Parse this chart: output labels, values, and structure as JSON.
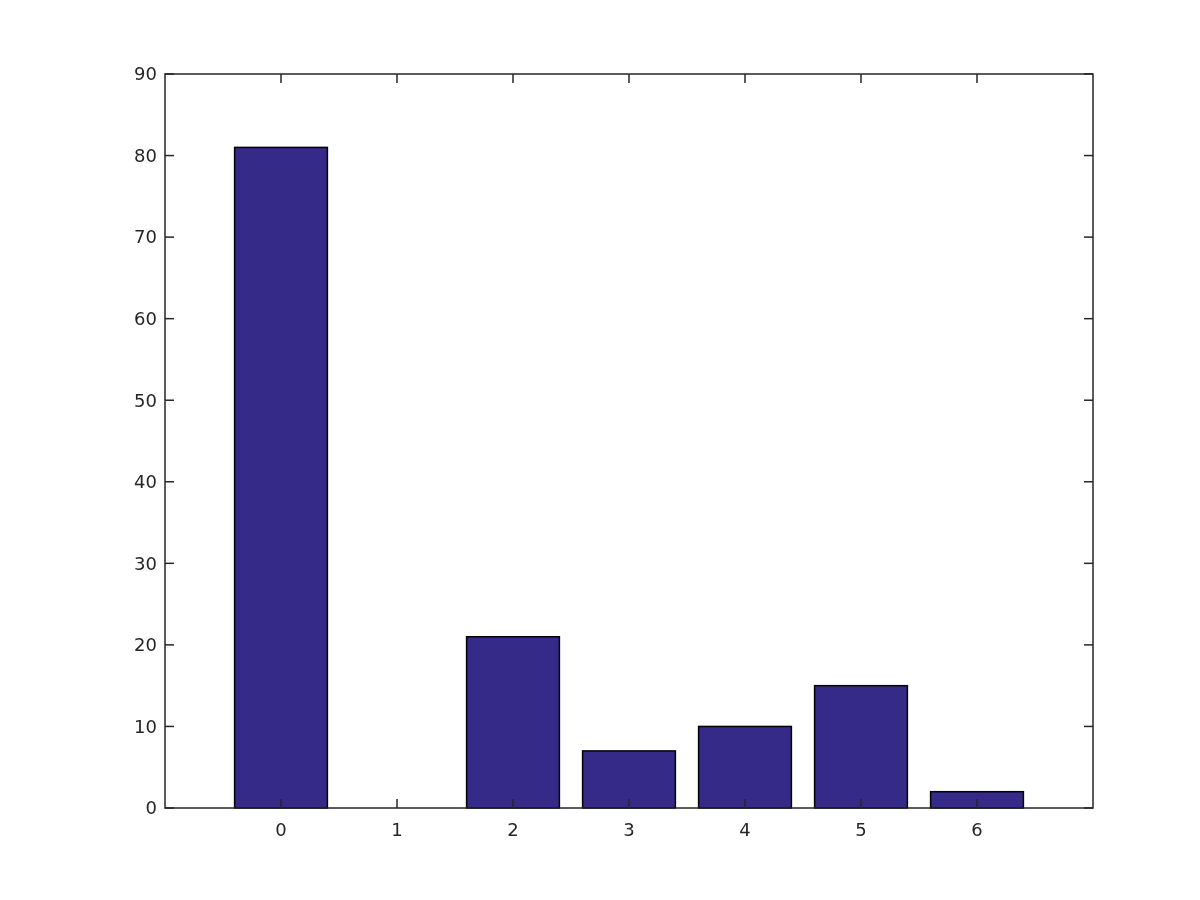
{
  "chart_data": {
    "type": "bar",
    "x": [
      0,
      1,
      2,
      3,
      4,
      5,
      6
    ],
    "values": [
      81,
      0,
      21,
      7,
      10,
      15,
      2
    ],
    "color": "#352a87",
    "xlim": [
      -1,
      7
    ],
    "xticks": [
      0,
      1,
      2,
      3,
      4,
      5,
      6
    ],
    "ylim": [
      0,
      90
    ],
    "yticks": [
      0,
      10,
      20,
      30,
      40,
      50,
      60,
      70,
      80,
      90
    ],
    "grid": false
  }
}
